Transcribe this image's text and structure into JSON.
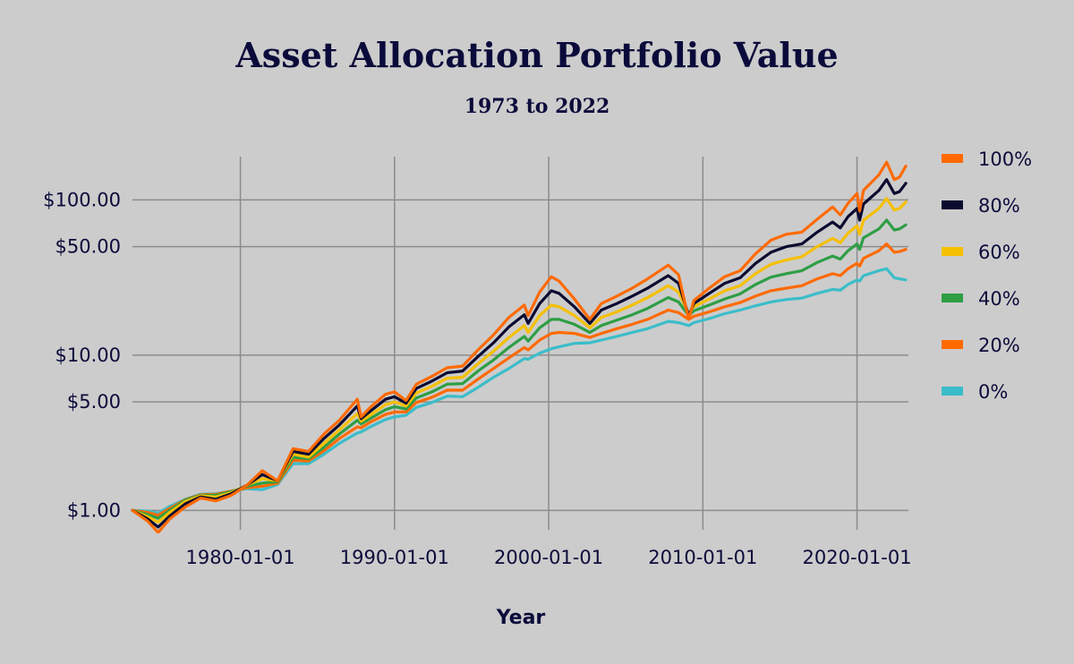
{
  "chart_data": {
    "type": "line",
    "title": "Asset Allocation Portfolio Value",
    "subtitle": "1973 to 2022",
    "xlabel": "Year",
    "ylabel": "",
    "y_scale": "log",
    "ylim": [
      0.75,
      190
    ],
    "xlim": [
      "1973-01-01",
      "2023-05-01"
    ],
    "x_ticks": [
      "1980-01-01",
      "1990-01-01",
      "2000-01-01",
      "2010-01-01",
      "2020-01-01"
    ],
    "y_ticks": [
      {
        "value": 1,
        "label": "$1.00"
      },
      {
        "value": 5,
        "label": "$5.00"
      },
      {
        "value": 10,
        "label": "$10.00"
      },
      {
        "value": 50,
        "label": "$50.00"
      },
      {
        "value": 100,
        "label": "$100.00"
      }
    ],
    "grid": true,
    "legend_position": "right",
    "x": [
      "1973-01-01",
      "1974-01-01",
      "1974-09-01",
      "1975-06-01",
      "1976-06-01",
      "1977-06-01",
      "1978-06-01",
      "1979-06-01",
      "1980-06-01",
      "1981-06-01",
      "1982-06-01",
      "1983-06-01",
      "1984-06-01",
      "1985-06-01",
      "1986-06-01",
      "1987-08-01",
      "1987-11-01",
      "1988-06-01",
      "1989-06-01",
      "1990-01-01",
      "1990-10-01",
      "1991-06-01",
      "1992-06-01",
      "1993-06-01",
      "1994-06-01",
      "1995-06-01",
      "1996-06-01",
      "1997-06-01",
      "1998-06-01",
      "1998-09-01",
      "1999-06-01",
      "2000-03-01",
      "2000-09-01",
      "2001-09-01",
      "2002-09-01",
      "2003-06-01",
      "2004-06-01",
      "2005-06-01",
      "2006-06-01",
      "2007-10-01",
      "2008-06-01",
      "2009-02-01",
      "2009-06-01",
      "2010-06-01",
      "2011-06-01",
      "2012-06-01",
      "2013-06-01",
      "2014-06-01",
      "2015-06-01",
      "2016-06-01",
      "2017-06-01",
      "2018-06-01",
      "2018-12-01",
      "2019-06-01",
      "2020-01-01",
      "2020-03-01",
      "2020-06-01",
      "2021-06-01",
      "2021-12-01",
      "2022-06-01",
      "2022-10-01",
      "2023-03-01"
    ],
    "series": [
      {
        "name": "100%",
        "color": "#ff6a00",
        "values": [
          1.0,
          0.85,
          0.72,
          0.88,
          1.05,
          1.2,
          1.15,
          1.25,
          1.45,
          1.8,
          1.55,
          2.5,
          2.4,
          3.1,
          3.8,
          5.2,
          4.0,
          4.6,
          5.6,
          5.8,
          5.1,
          6.5,
          7.3,
          8.3,
          8.5,
          10.8,
          13.5,
          17.5,
          21.0,
          18.0,
          25.5,
          32.0,
          30.0,
          23.0,
          17.0,
          21.5,
          24.0,
          27.0,
          31.0,
          38.0,
          33.0,
          17.0,
          22.5,
          27.0,
          32.0,
          35.0,
          45.0,
          55.0,
          60.0,
          62.0,
          75.0,
          90.0,
          80.0,
          95.0,
          110.0,
          85.0,
          115.0,
          145.0,
          175.0,
          135.0,
          140.0,
          165.0
        ]
      },
      {
        "name": "80%",
        "color": "#0a0a30",
        "values": [
          1.0,
          0.88,
          0.78,
          0.92,
          1.1,
          1.22,
          1.18,
          1.28,
          1.45,
          1.7,
          1.55,
          2.4,
          2.3,
          2.9,
          3.55,
          4.7,
          3.9,
          4.35,
          5.2,
          5.4,
          4.9,
          6.1,
          6.8,
          7.7,
          7.9,
          9.8,
          12.0,
          15.2,
          18.2,
          16.0,
          21.5,
          26.0,
          25.0,
          20.5,
          16.0,
          19.5,
          21.5,
          24.0,
          27.0,
          32.5,
          29.0,
          18.0,
          21.5,
          25.0,
          29.0,
          31.5,
          39.0,
          46.0,
          50.0,
          52.0,
          62.0,
          72.0,
          66.0,
          78.0,
          88.0,
          74.0,
          94.0,
          115.0,
          135.0,
          110.0,
          113.0,
          128.0
        ]
      },
      {
        "name": "60%",
        "color": "#f5c000",
        "values": [
          1.0,
          0.91,
          0.84,
          0.97,
          1.14,
          1.24,
          1.22,
          1.3,
          1.45,
          1.6,
          1.55,
          2.3,
          2.2,
          2.7,
          3.3,
          4.2,
          3.75,
          4.1,
          4.8,
          5.0,
          4.7,
          5.7,
          6.3,
          7.1,
          7.2,
          8.8,
          10.6,
          13.0,
          15.5,
          14.0,
          18.0,
          21.0,
          20.5,
          18.0,
          15.0,
          17.5,
          19.0,
          21.0,
          23.5,
          28.0,
          25.5,
          18.5,
          20.5,
          23.0,
          26.0,
          28.0,
          33.5,
          38.5,
          41.0,
          43.0,
          50.0,
          56.5,
          53.0,
          61.0,
          68.0,
          60.0,
          74.0,
          88.0,
          102.0,
          86.0,
          88.0,
          97.0
        ]
      },
      {
        "name": "40%",
        "color": "#2e9e45",
        "values": [
          1.0,
          0.94,
          0.89,
          1.0,
          1.16,
          1.25,
          1.25,
          1.32,
          1.43,
          1.5,
          1.53,
          2.2,
          2.15,
          2.55,
          3.1,
          3.8,
          3.6,
          3.9,
          4.45,
          4.65,
          4.5,
          5.3,
          5.8,
          6.5,
          6.55,
          7.9,
          9.3,
          11.2,
          13.2,
          12.3,
          15.0,
          17.0,
          17.0,
          15.8,
          14.0,
          15.5,
          16.8,
          18.2,
          20.0,
          23.5,
          22.0,
          18.0,
          19.3,
          21.0,
          23.0,
          24.8,
          28.5,
          31.8,
          33.5,
          35.0,
          39.5,
          43.5,
          41.5,
          47.0,
          52.0,
          48.0,
          57.0,
          65.0,
          74.0,
          64.0,
          65.0,
          69.0
        ]
      },
      {
        "name": "20%",
        "color": "#ff6a00",
        "values": [
          1.0,
          0.97,
          0.93,
          1.03,
          1.17,
          1.26,
          1.27,
          1.33,
          1.4,
          1.43,
          1.5,
          2.1,
          2.08,
          2.42,
          2.9,
          3.45,
          3.4,
          3.7,
          4.15,
          4.3,
          4.3,
          4.95,
          5.35,
          5.95,
          5.95,
          7.0,
          8.2,
          9.6,
          11.2,
          10.8,
          12.5,
          13.8,
          14.0,
          13.8,
          13.0,
          13.8,
          14.8,
          15.8,
          17.0,
          19.5,
          18.8,
          17.0,
          17.8,
          19.0,
          20.5,
          21.8,
          24.0,
          26.0,
          27.0,
          28.0,
          31.0,
          33.5,
          32.5,
          36.0,
          39.0,
          37.5,
          42.0,
          47.0,
          52.0,
          46.0,
          46.5,
          48.0
        ]
      },
      {
        "name": "0%",
        "color": "#3bbdc9",
        "values": [
          1.0,
          0.99,
          0.96,
          1.06,
          1.18,
          1.27,
          1.28,
          1.33,
          1.38,
          1.36,
          1.47,
          2.0,
          2.0,
          2.3,
          2.7,
          3.15,
          3.2,
          3.45,
          3.85,
          4.0,
          4.1,
          4.6,
          4.95,
          5.45,
          5.4,
          6.2,
          7.2,
          8.2,
          9.5,
          9.4,
          10.3,
          11.0,
          11.3,
          11.9,
          12.0,
          12.5,
          13.2,
          14.0,
          14.8,
          16.5,
          16.2,
          15.5,
          16.2,
          17.2,
          18.5,
          19.5,
          20.8,
          22.0,
          22.8,
          23.3,
          25.0,
          26.5,
          26.2,
          28.5,
          30.5,
          30.0,
          32.5,
          35.0,
          36.0,
          31.5,
          31.0,
          30.5
        ]
      }
    ]
  }
}
